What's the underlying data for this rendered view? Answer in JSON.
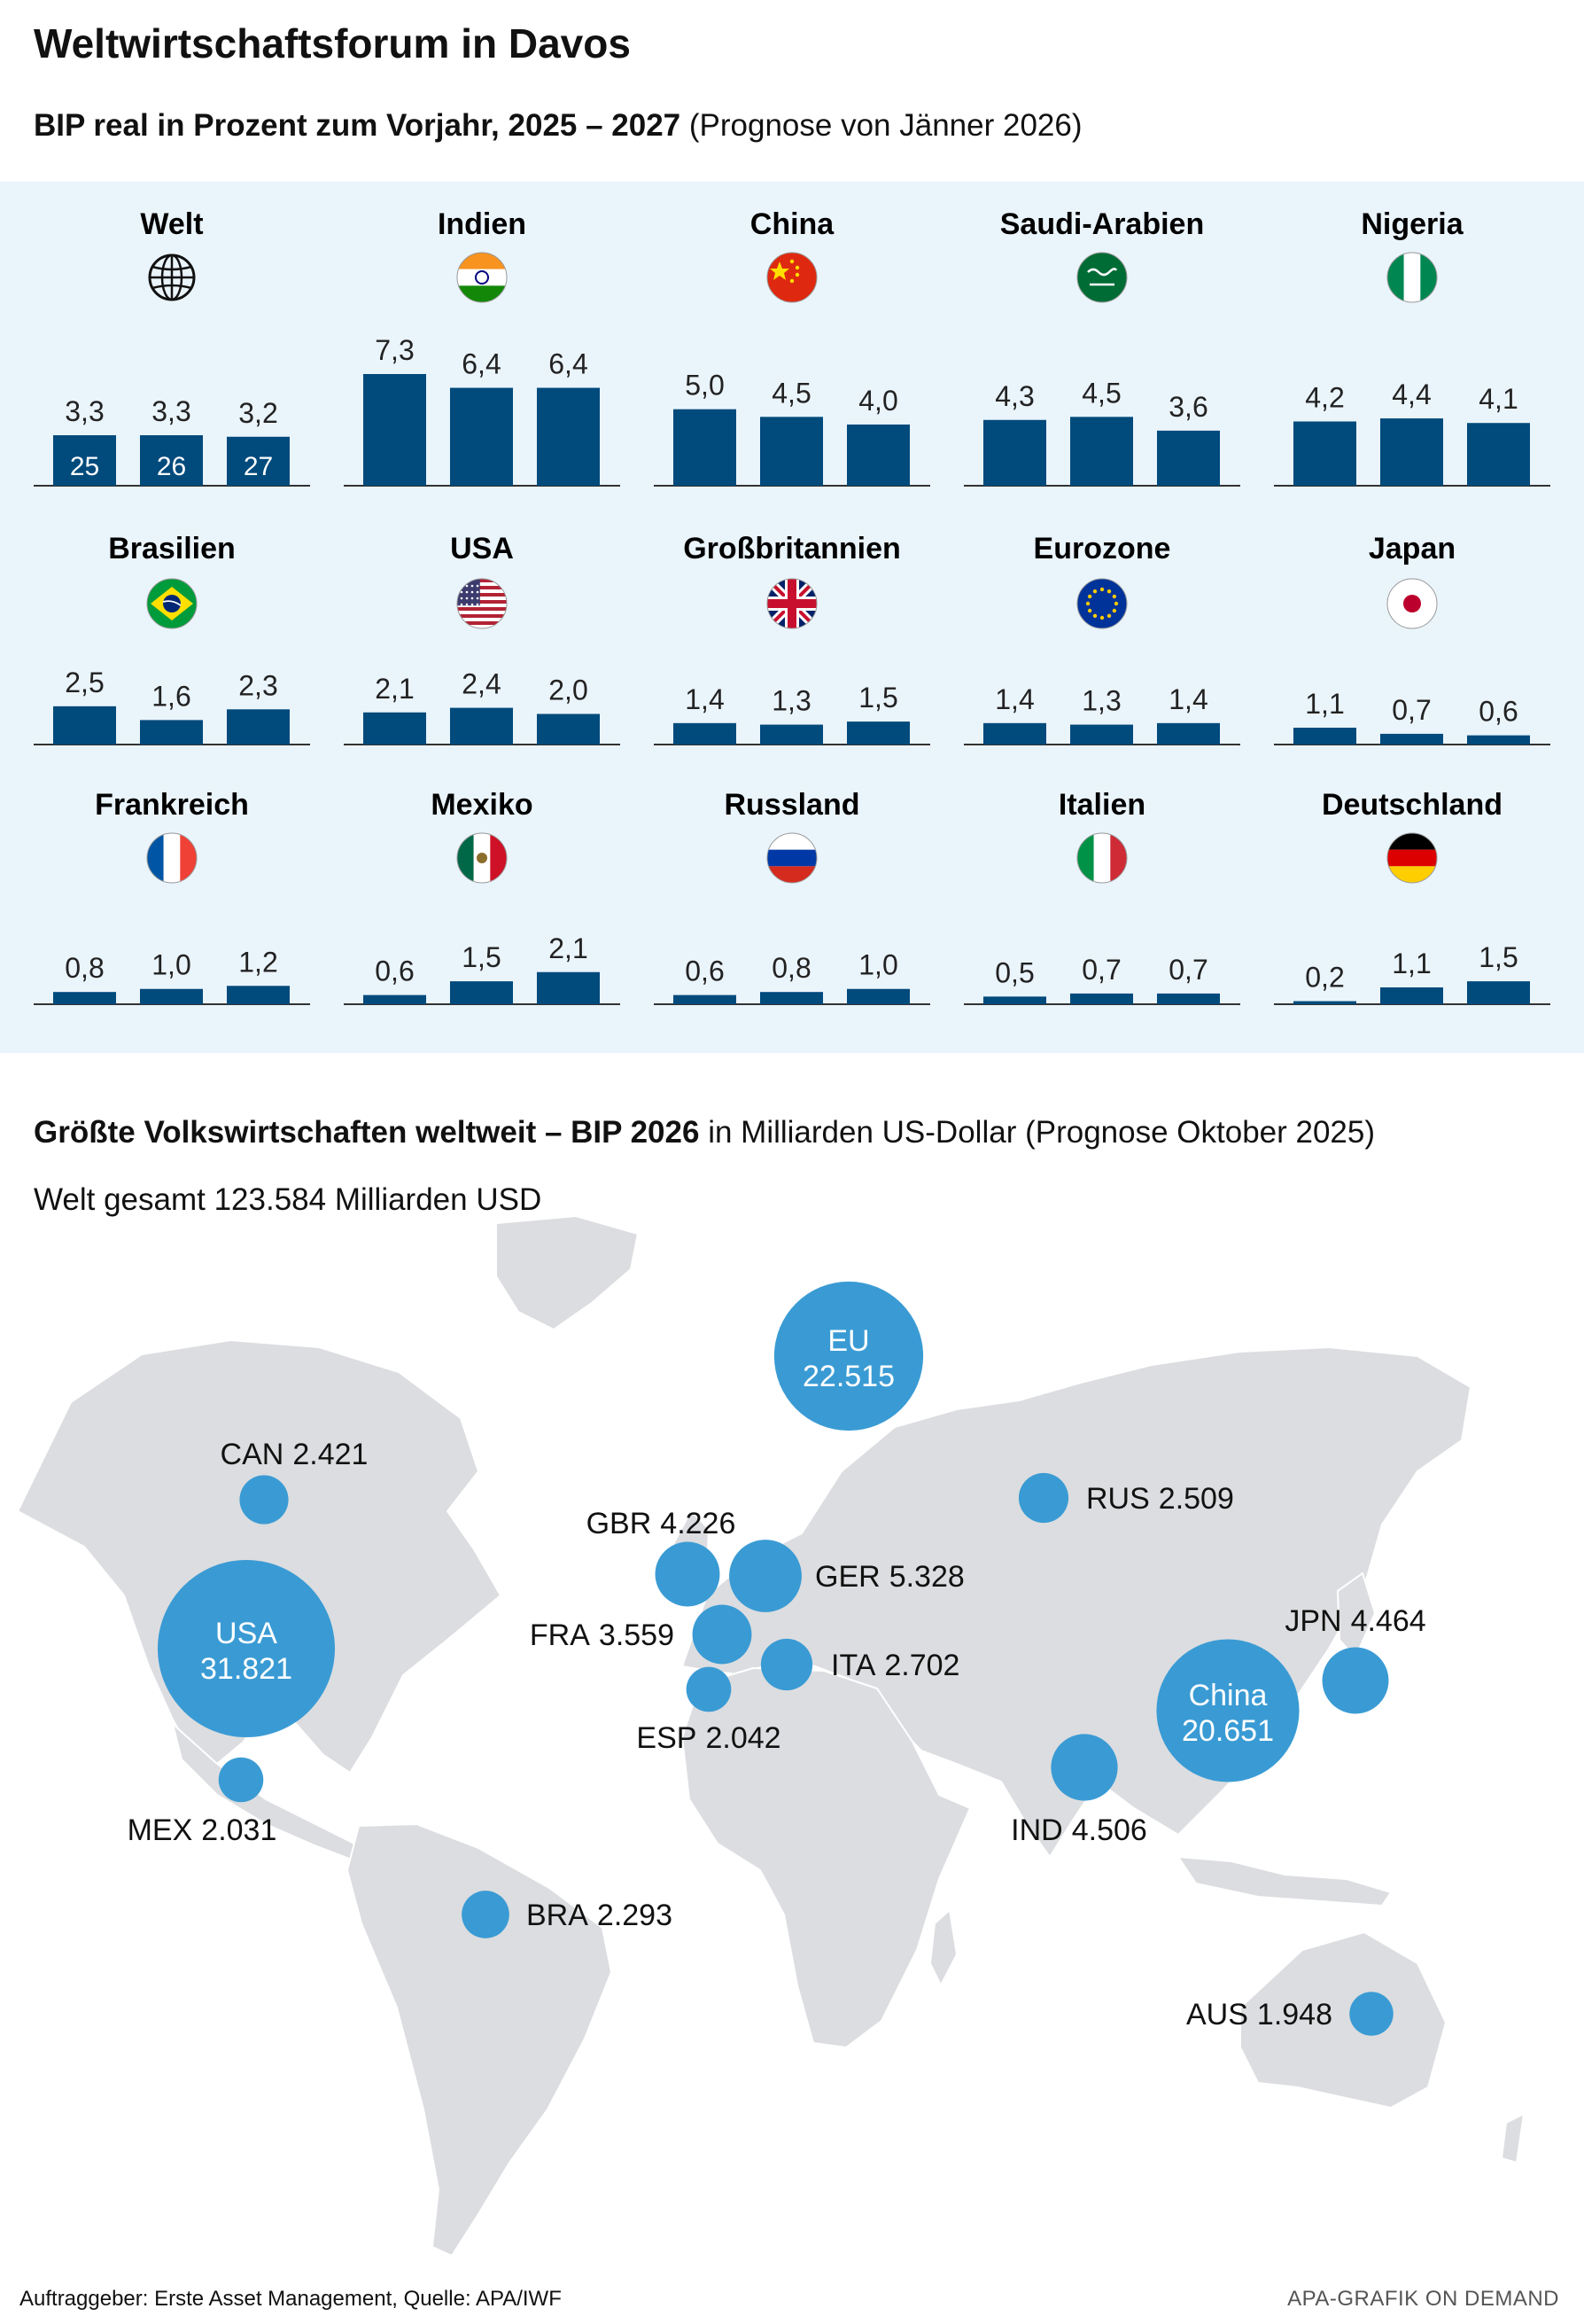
{
  "header": {
    "title": "Weltwirtschaftsforum in Davos",
    "subtitle_bold": "BIP real in Prozent zum Vorjahr, 2025 – 2027",
    "subtitle_rest": " (Prognose von Jänner 2026)"
  },
  "map_section": {
    "subtitle_bold": "Größte Volkswirtschaften weltweit – BIP 2026",
    "subtitle_rest": " in Milliarden US-Dollar (Prognose Oktober 2025)",
    "world_total": "Welt gesamt 123.584 Milliarden USD"
  },
  "footer": {
    "left": "Auftraggeber: Erste Asset Management, Quelle: APA/IWF",
    "right": "APA-GRAFIK ON DEMAND"
  },
  "colors": {
    "bar": "#004a7c",
    "bubble": "#3a9bd4",
    "panel": "#eaf4fb",
    "land": "#dcdde0"
  },
  "chart_data": [
    {
      "type": "bar",
      "title": "BIP real in Prozent zum Vorjahr, 2025 – 2027",
      "year_labels": [
        "25",
        "26",
        "27"
      ],
      "ylim": [
        0,
        7.3
      ],
      "countries": [
        {
          "name": "Welt",
          "flag": "globe-icon",
          "values": [
            3.3,
            3.3,
            3.2
          ],
          "labels": [
            "3,3",
            "3,3",
            "3,2"
          ]
        },
        {
          "name": "Indien",
          "flag": "india-flag-icon",
          "values": [
            7.3,
            6.4,
            6.4
          ],
          "labels": [
            "7,3",
            "6,4",
            "6,4"
          ]
        },
        {
          "name": "China",
          "flag": "china-flag-icon",
          "values": [
            5.0,
            4.5,
            4.0
          ],
          "labels": [
            "5,0",
            "4,5",
            "4,0"
          ]
        },
        {
          "name": "Saudi-Arabien",
          "flag": "saudi-arabia-flag-icon",
          "values": [
            4.3,
            4.5,
            3.6
          ],
          "labels": [
            "4,3",
            "4,5",
            "3,6"
          ]
        },
        {
          "name": "Nigeria",
          "flag": "nigeria-flag-icon",
          "values": [
            4.2,
            4.4,
            4.1
          ],
          "labels": [
            "4,2",
            "4,4",
            "4,1"
          ]
        },
        {
          "name": "Brasilien",
          "flag": "brazil-flag-icon",
          "values": [
            2.5,
            1.6,
            2.3
          ],
          "labels": [
            "2,5",
            "1,6",
            "2,3"
          ]
        },
        {
          "name": "USA",
          "flag": "usa-flag-icon",
          "values": [
            2.1,
            2.4,
            2.0
          ],
          "labels": [
            "2,1",
            "2,4",
            "2,0"
          ]
        },
        {
          "name": "Großbritannien",
          "flag": "uk-flag-icon",
          "values": [
            1.4,
            1.3,
            1.5
          ],
          "labels": [
            "1,4",
            "1,3",
            "1,5"
          ]
        },
        {
          "name": "Eurozone",
          "flag": "eu-flag-icon",
          "values": [
            1.4,
            1.3,
            1.4
          ],
          "labels": [
            "1,4",
            "1,3",
            "1,4"
          ]
        },
        {
          "name": "Japan",
          "flag": "japan-flag-icon",
          "values": [
            1.1,
            0.7,
            0.6
          ],
          "labels": [
            "1,1",
            "0,7",
            "0,6"
          ]
        },
        {
          "name": "Frankreich",
          "flag": "france-flag-icon",
          "values": [
            0.8,
            1.0,
            1.2
          ],
          "labels": [
            "0,8",
            "1,0",
            "1,2"
          ]
        },
        {
          "name": "Mexiko",
          "flag": "mexico-flag-icon",
          "values": [
            0.6,
            1.5,
            2.1
          ],
          "labels": [
            "0,6",
            "1,5",
            "2,1"
          ]
        },
        {
          "name": "Russland",
          "flag": "russia-flag-icon",
          "values": [
            0.6,
            0.8,
            1.0
          ],
          "labels": [
            "0,6",
            "0,8",
            "1,0"
          ]
        },
        {
          "name": "Italien",
          "flag": "italy-flag-icon",
          "values": [
            0.5,
            0.7,
            0.7
          ],
          "labels": [
            "0,5",
            "0,7",
            "0,7"
          ]
        },
        {
          "name": "Deutschland",
          "flag": "germany-flag-icon",
          "values": [
            0.2,
            1.1,
            1.5
          ],
          "labels": [
            "0,2",
            "1,1",
            "1,5"
          ]
        }
      ]
    },
    {
      "type": "scatter",
      "title": "Größte Volkswirtschaften weltweit – BIP 2026",
      "unit": "Milliarden US-Dollar",
      "bubbles": [
        {
          "code": "EU",
          "value": 22515,
          "label": "22.515",
          "label_inside": true
        },
        {
          "code": "USA",
          "value": 31821,
          "label": "31.821",
          "label_inside": true
        },
        {
          "code": "China",
          "value": 20651,
          "label": "20.651",
          "label_inside": true
        },
        {
          "code": "CAN",
          "value": 2421,
          "label": "2.421"
        },
        {
          "code": "RUS",
          "value": 2509,
          "label": "2.509"
        },
        {
          "code": "GBR",
          "value": 4226,
          "label": "4.226"
        },
        {
          "code": "GER",
          "value": 5328,
          "label": "5.328"
        },
        {
          "code": "FRA",
          "value": 3559,
          "label": "3.559"
        },
        {
          "code": "ITA",
          "value": 2702,
          "label": "2.702"
        },
        {
          "code": "ESP",
          "value": 2042,
          "label": "2.042"
        },
        {
          "code": "JPN",
          "value": 4464,
          "label": "4.464"
        },
        {
          "code": "IND",
          "value": 4506,
          "label": "4.506"
        },
        {
          "code": "MEX",
          "value": 2031,
          "label": "2.031"
        },
        {
          "code": "BRA",
          "value": 2293,
          "label": "2.293"
        },
        {
          "code": "AUS",
          "value": 1948,
          "label": "1.948"
        }
      ]
    }
  ]
}
